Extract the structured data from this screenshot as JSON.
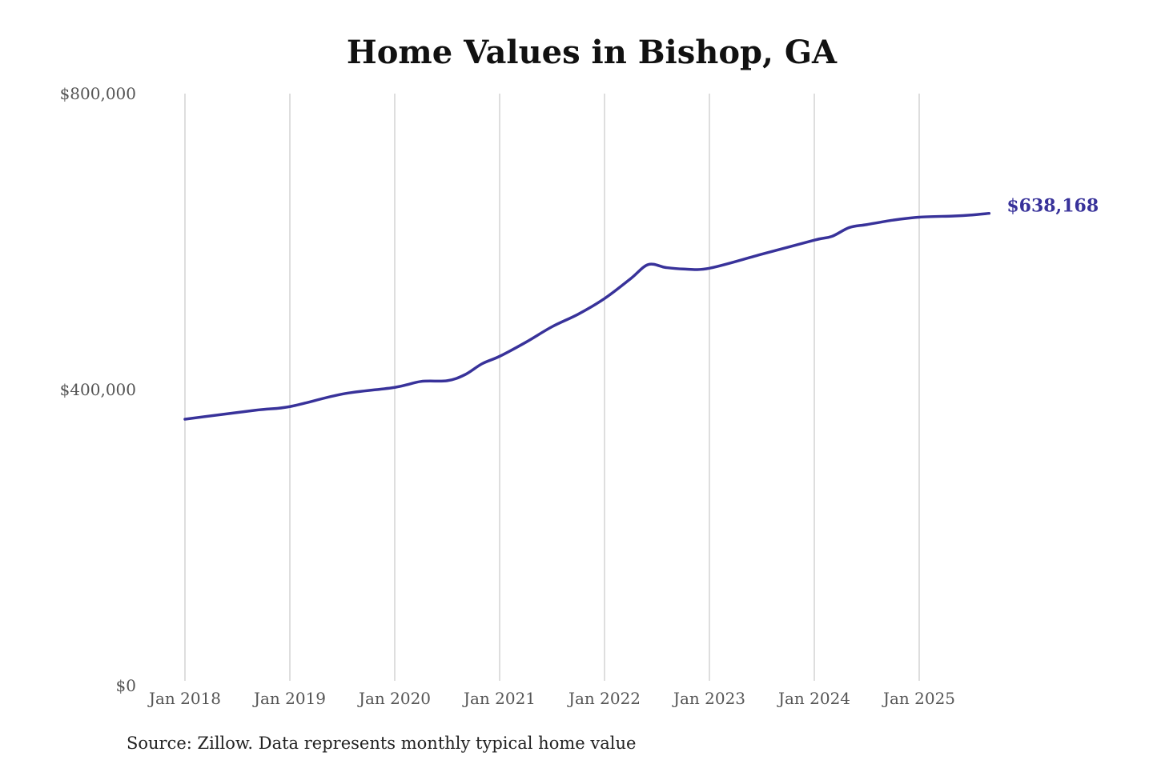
{
  "chart_data": {
    "type": "line",
    "title": "Home Values in Bishop, GA",
    "source": "Source: Zillow. Data represents monthly typical home value",
    "xlabel": "",
    "ylabel": "",
    "ylim": [
      0,
      800000
    ],
    "y_ticks": [
      0,
      400000,
      800000
    ],
    "y_tick_labels": [
      "$0",
      "$400,000",
      "$800,000"
    ],
    "x_tick_labels": [
      "Jan 2018",
      "Jan 2019",
      "Jan 2020",
      "Jan 2021",
      "Jan 2022",
      "Jan 2023",
      "Jan 2024",
      "Jan 2025"
    ],
    "x_ticks": [
      "2018-01",
      "2019-01",
      "2020-01",
      "2021-01",
      "2022-01",
      "2023-01",
      "2024-01",
      "2025-01"
    ],
    "grid": "vertical",
    "line_color": "#38329a",
    "end_label": "$638,168",
    "series": [
      {
        "points": [
          [
            "2018-01",
            360000
          ],
          [
            "2018-09",
            372000
          ],
          [
            "2019-01",
            377000
          ],
          [
            "2019-07",
            394000
          ],
          [
            "2020-01",
            403000
          ],
          [
            "2020-04",
            411000
          ],
          [
            "2020-07",
            412000
          ],
          [
            "2020-09",
            420000
          ],
          [
            "2020-11",
            435000
          ],
          [
            "2021-01",
            445000
          ],
          [
            "2021-04",
            464000
          ],
          [
            "2021-07",
            485000
          ],
          [
            "2021-10",
            502000
          ],
          [
            "2022-01",
            523000
          ],
          [
            "2022-04",
            550000
          ],
          [
            "2022-06",
            569000
          ],
          [
            "2022-08",
            565000
          ],
          [
            "2022-10",
            563000
          ],
          [
            "2023-01",
            564000
          ],
          [
            "2023-07",
            583000
          ],
          [
            "2024-01",
            602000
          ],
          [
            "2024-03",
            607000
          ],
          [
            "2024-05",
            619000
          ],
          [
            "2024-07",
            623000
          ],
          [
            "2024-10",
            629000
          ],
          [
            "2025-01",
            633000
          ],
          [
            "2025-05",
            634600
          ],
          [
            "2025-07",
            636000
          ],
          [
            "2025-09",
            638168
          ]
        ]
      }
    ]
  }
}
